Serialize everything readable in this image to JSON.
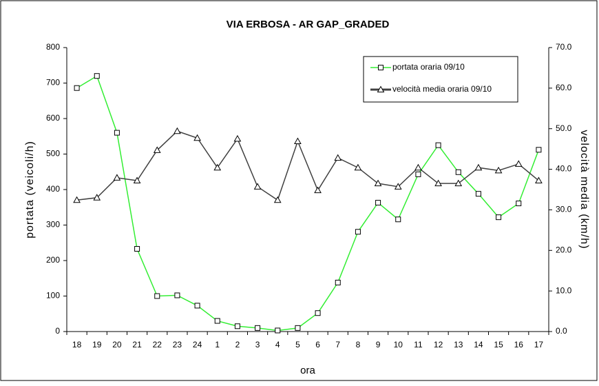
{
  "chart_data": {
    "type": "line",
    "title": "VIA ERBOSA - AR GAP_GRADED",
    "x_label": "ora",
    "y_label": "portata (veicoli/h)",
    "y2_label": "velocità media (km/h)",
    "categories": [
      "18",
      "19",
      "20",
      "21",
      "22",
      "23",
      "24",
      "1",
      "2",
      "3",
      "4",
      "5",
      "6",
      "7",
      "8",
      "9",
      "10",
      "11",
      "12",
      "13",
      "14",
      "15",
      "16",
      "17"
    ],
    "series": [
      {
        "name": "portata oraria 09/10",
        "color": "#33ee33",
        "marker": "square",
        "values": [
          686,
          720,
          560,
          233,
          100,
          102,
          73,
          30,
          15,
          10,
          3,
          10,
          52,
          138,
          281,
          363,
          316,
          443,
          525,
          449,
          388,
          322,
          361,
          512
        ]
      },
      {
        "name": "velocità media oraria 09/10",
        "color": "#404040",
        "marker": "triangle",
        "axis": "y2",
        "values": [
          32.4,
          33,
          37.9,
          37.2,
          44.7,
          49.4,
          47.7,
          40.4,
          47.5,
          35.7,
          32.4,
          46.9,
          34.8,
          42.8,
          40.4,
          36.5,
          35.7,
          40.4,
          36.5,
          36.5,
          40.4,
          39.7,
          41.3,
          37.2
        ]
      }
    ],
    "ylim": [
      0,
      800
    ],
    "yticks": [
      0,
      100,
      200,
      300,
      400,
      500,
      600,
      700,
      800
    ],
    "y2lim": [
      0,
      70
    ],
    "y2ticks": [
      {
        "value": 0,
        "label": "0.0"
      },
      {
        "value": 10,
        "label": "10.0"
      },
      {
        "value": 20,
        "label": "20.0"
      },
      {
        "value": 30,
        "label": "30.0"
      },
      {
        "value": 40,
        "label": "40.0"
      },
      {
        "value": 50,
        "label": "50.0"
      },
      {
        "value": 60,
        "label": "60.0"
      },
      {
        "value": 70,
        "label": "70.0"
      }
    ],
    "grid": false,
    "legend": "top-right"
  }
}
